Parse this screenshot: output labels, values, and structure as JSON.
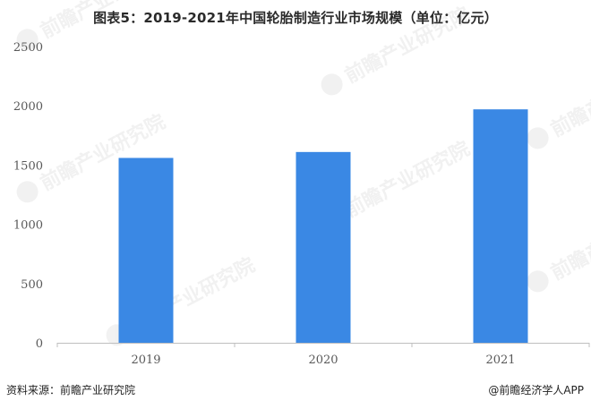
{
  "header": {
    "title": "图表5：2019-2021年中国轮胎制造行业市场规模（单位：亿元）"
  },
  "footer": {
    "source": "资料来源：前瞻产业研究院",
    "brand": "@前瞻经济学人APP"
  },
  "watermark": {
    "text": "前瞻产业研究院"
  },
  "colors": {
    "bar": "#3a88e4",
    "axis": "#bfbfbf",
    "tick_text": "#595959"
  },
  "chart_data": {
    "type": "bar",
    "categories": [
      "2019",
      "2020",
      "2021"
    ],
    "values": [
      1560,
      1610,
      1970
    ],
    "ylim": [
      0,
      2500
    ],
    "yticks": [
      0,
      500,
      1000,
      1500,
      2000,
      2500
    ],
    "grid": false,
    "xlabel": "",
    "ylabel": ""
  }
}
